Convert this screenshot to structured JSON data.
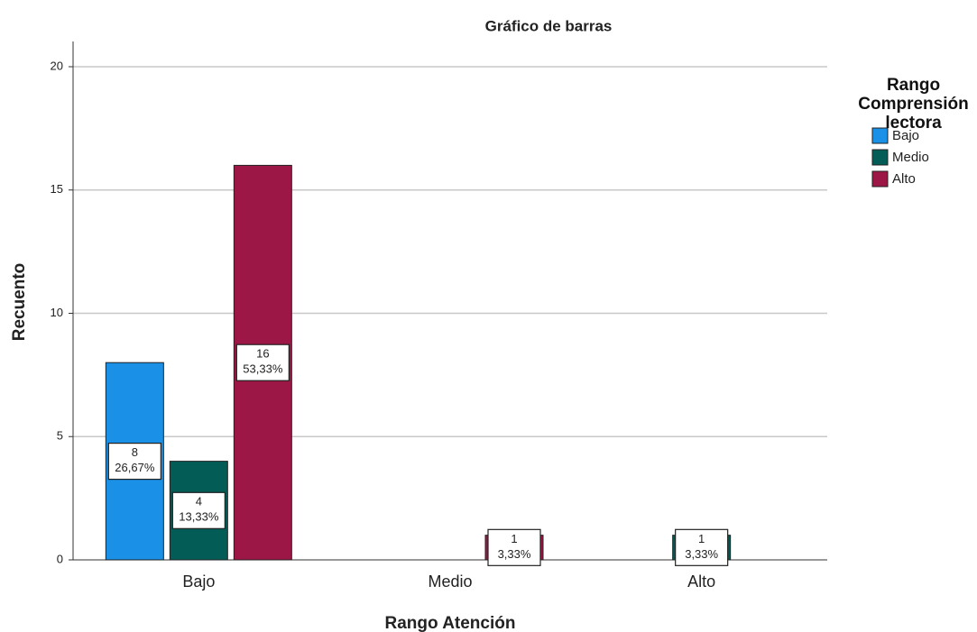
{
  "chart_data": {
    "type": "bar",
    "title": "Gráfico de barras",
    "x_label": "Rango Atención",
    "y_label": "Recuento",
    "legend_title": "Rango Comprensión lectora",
    "legend_position": "right",
    "categories": [
      "Bajo",
      "Medio",
      "Alto"
    ],
    "series": [
      {
        "name": "Bajo",
        "color": "#1a90e6",
        "values": [
          8,
          0,
          0
        ],
        "percent_values": [
          26.67,
          null,
          null
        ],
        "percent_labels": [
          "26,67%",
          null,
          null
        ]
      },
      {
        "name": "Medio",
        "color": "#045c57",
        "values": [
          4,
          0,
          1
        ],
        "percent_values": [
          13.33,
          null,
          3.33
        ],
        "percent_labels": [
          "13,33%",
          null,
          "3,33%"
        ]
      },
      {
        "name": "Alto",
        "color": "#9c1646",
        "values": [
          16,
          1,
          0
        ],
        "percent_values": [
          53.33,
          3.33,
          null
        ],
        "percent_labels": [
          "53,33%",
          "3,33%",
          null
        ]
      }
    ],
    "ylim": [
      0,
      20
    ],
    "yticks": [
      0,
      5,
      10,
      15,
      20
    ],
    "grid": true
  }
}
